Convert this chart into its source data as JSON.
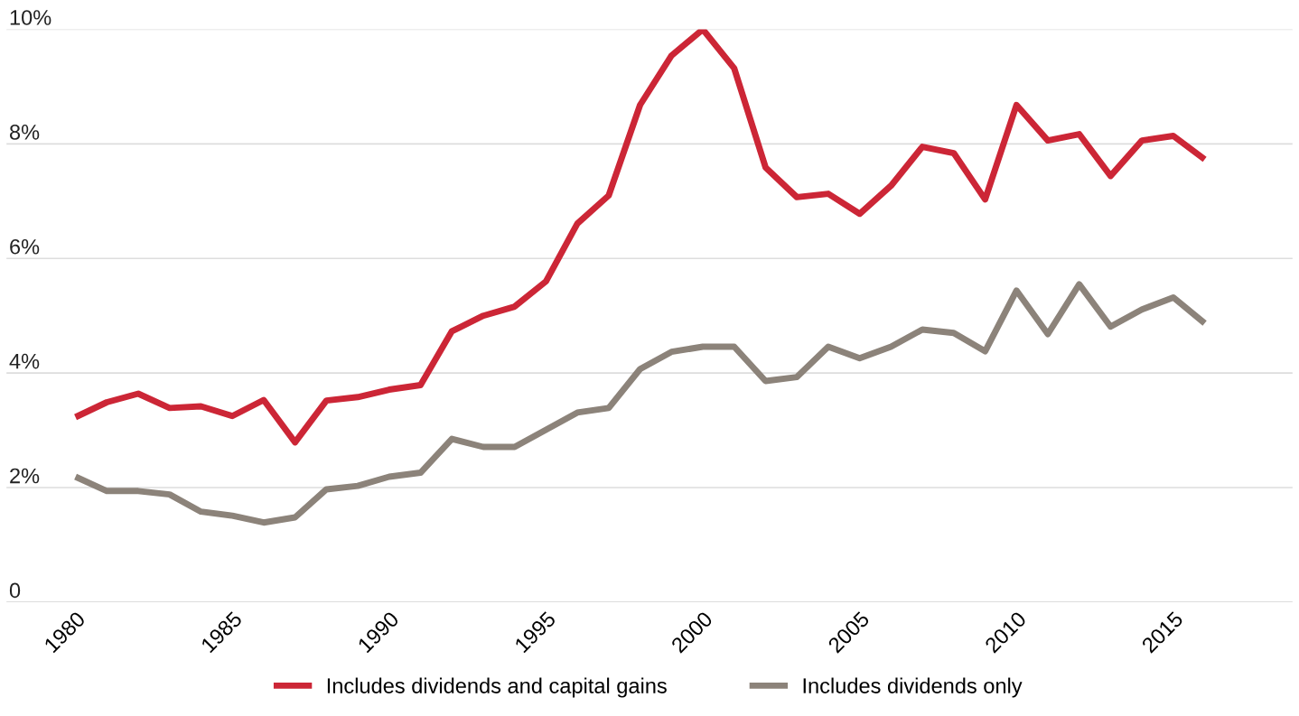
{
  "chart_data": {
    "type": "line",
    "x": [
      1980,
      1981,
      1982,
      1983,
      1984,
      1985,
      1986,
      1987,
      1988,
      1989,
      1990,
      1991,
      1992,
      1993,
      1994,
      1995,
      1996,
      1997,
      1998,
      1999,
      2000,
      2001,
      2002,
      2003,
      2004,
      2005,
      2006,
      2007,
      2008,
      2009,
      2010,
      2011,
      2012,
      2013,
      2014,
      2015,
      2016
    ],
    "series": [
      {
        "name": "Includes dividends and capital gains",
        "color": "#cc2636",
        "values": [
          3.23,
          3.49,
          3.64,
          3.39,
          3.42,
          3.25,
          3.53,
          2.79,
          3.52,
          3.58,
          3.71,
          3.79,
          4.73,
          5.0,
          5.16,
          5.6,
          6.61,
          7.1,
          8.68,
          9.54,
          10.0,
          9.32,
          7.59,
          7.07,
          7.13,
          6.78,
          7.27,
          7.95,
          7.84,
          7.03,
          8.68,
          8.06,
          8.17,
          7.44,
          8.06,
          8.14,
          7.73
        ]
      },
      {
        "name": "Includes dividends only",
        "color": "#8c837a",
        "values": [
          2.19,
          1.94,
          1.94,
          1.88,
          1.58,
          1.51,
          1.39,
          1.48,
          1.97,
          2.03,
          2.19,
          2.26,
          2.85,
          2.71,
          2.71,
          3.01,
          3.31,
          3.39,
          4.07,
          4.37,
          4.46,
          4.46,
          3.86,
          3.93,
          4.46,
          4.26,
          4.46,
          4.76,
          4.7,
          4.38,
          5.44,
          4.68,
          5.55,
          4.81,
          5.11,
          5.32,
          4.87
        ]
      }
    ],
    "xlim": [
      1977.8,
      2018.8
    ],
    "xticks": [
      1980,
      1985,
      1990,
      1995,
      2000,
      2005,
      2010,
      2015
    ],
    "ylim": [
      0,
      10
    ],
    "yticks": [
      {
        "value": 0,
        "label": "0"
      },
      {
        "value": 2,
        "label": "2%"
      },
      {
        "value": 4,
        "label": "4%"
      },
      {
        "value": 6,
        "label": "6%"
      },
      {
        "value": 8,
        "label": "8%"
      },
      {
        "value": 10,
        "label": "10%"
      }
    ],
    "grid": "y",
    "legend": "bottom",
    "marker": "none",
    "line_style": "solid"
  }
}
